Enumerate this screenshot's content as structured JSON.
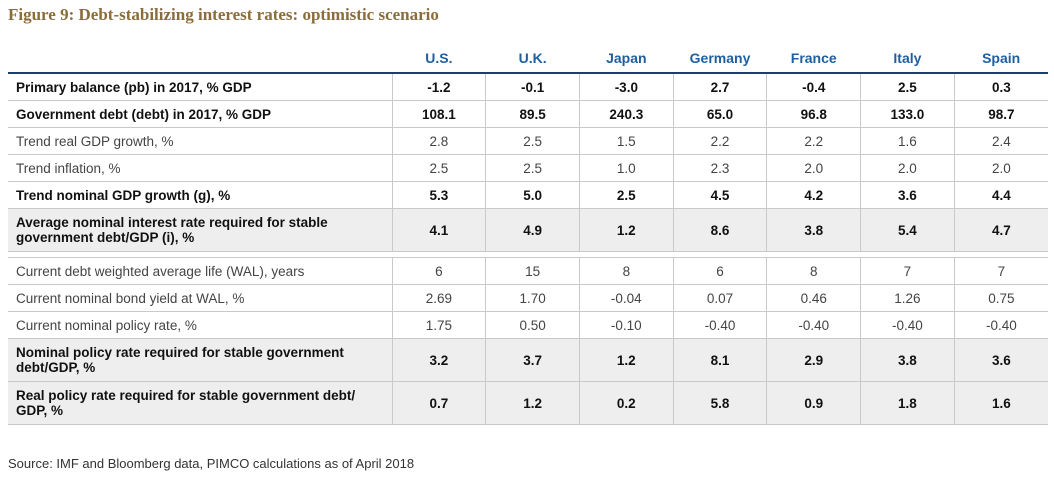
{
  "chart_data": {
    "type": "table",
    "title": "Figure 9: Debt-stabilizing interest rates: optimistic scenario",
    "columns": [
      "U.S.",
      "U.K.",
      "Japan",
      "Germany",
      "France",
      "Italy",
      "Spain"
    ],
    "rows": [
      {
        "label": "Primary balance (pb) in 2017, % GDP",
        "style": "bold",
        "values": [
          "-1.2",
          "-0.1",
          "-3.0",
          "2.7",
          "-0.4",
          "2.5",
          "0.3"
        ]
      },
      {
        "label": "Government debt (debt) in 2017, % GDP",
        "style": "bold",
        "values": [
          "108.1",
          "89.5",
          "240.3",
          "65.0",
          "96.8",
          "133.0",
          "98.7"
        ]
      },
      {
        "label": "Trend real GDP growth, %",
        "style": "light",
        "values": [
          "2.8",
          "2.5",
          "1.5",
          "2.2",
          "2.2",
          "1.6",
          "2.4"
        ]
      },
      {
        "label": "Trend inflation, %",
        "style": "light",
        "values": [
          "2.5",
          "2.5",
          "1.0",
          "2.3",
          "2.0",
          "2.0",
          "2.0"
        ]
      },
      {
        "label": "Trend nominal GDP growth (g), %",
        "style": "bold",
        "values": [
          "5.3",
          "5.0",
          "2.5",
          "4.5",
          "4.2",
          "3.6",
          "4.4"
        ]
      },
      {
        "label": "Average nominal interest rate required for stable government debt/GDP (i), %",
        "style": "bold-shade",
        "values": [
          "4.1",
          "4.9",
          "1.2",
          "8.6",
          "3.8",
          "5.4",
          "4.7"
        ]
      },
      {
        "label": "Current debt weighted average life (WAL), years",
        "style": "light",
        "values": [
          "6",
          "15",
          "8",
          "6",
          "8",
          "7",
          "7"
        ]
      },
      {
        "label": "Current nominal bond yield at WAL, %",
        "style": "light",
        "values": [
          "2.69",
          "1.70",
          "-0.04",
          "0.07",
          "0.46",
          "1.26",
          "0.75"
        ]
      },
      {
        "label": "Current nominal policy rate, %",
        "style": "light",
        "values": [
          "1.75",
          "0.50",
          "-0.10",
          "-0.40",
          "-0.40",
          "-0.40",
          "-0.40"
        ]
      },
      {
        "label": "Nominal policy rate required for stable government debt/GDP, %",
        "style": "bold-shade",
        "values": [
          "3.2",
          "3.7",
          "1.2",
          "8.1",
          "2.9",
          "3.8",
          "3.6"
        ]
      },
      {
        "label": "Real policy rate required for stable government debt/ GDP, %",
        "style": "bold-shade",
        "values": [
          "0.7",
          "1.2",
          "0.2",
          "5.8",
          "0.9",
          "1.8",
          "1.6"
        ]
      }
    ],
    "source": "Source: IMF and Bloomberg data, PIMCO calculations as of April 2018"
  }
}
